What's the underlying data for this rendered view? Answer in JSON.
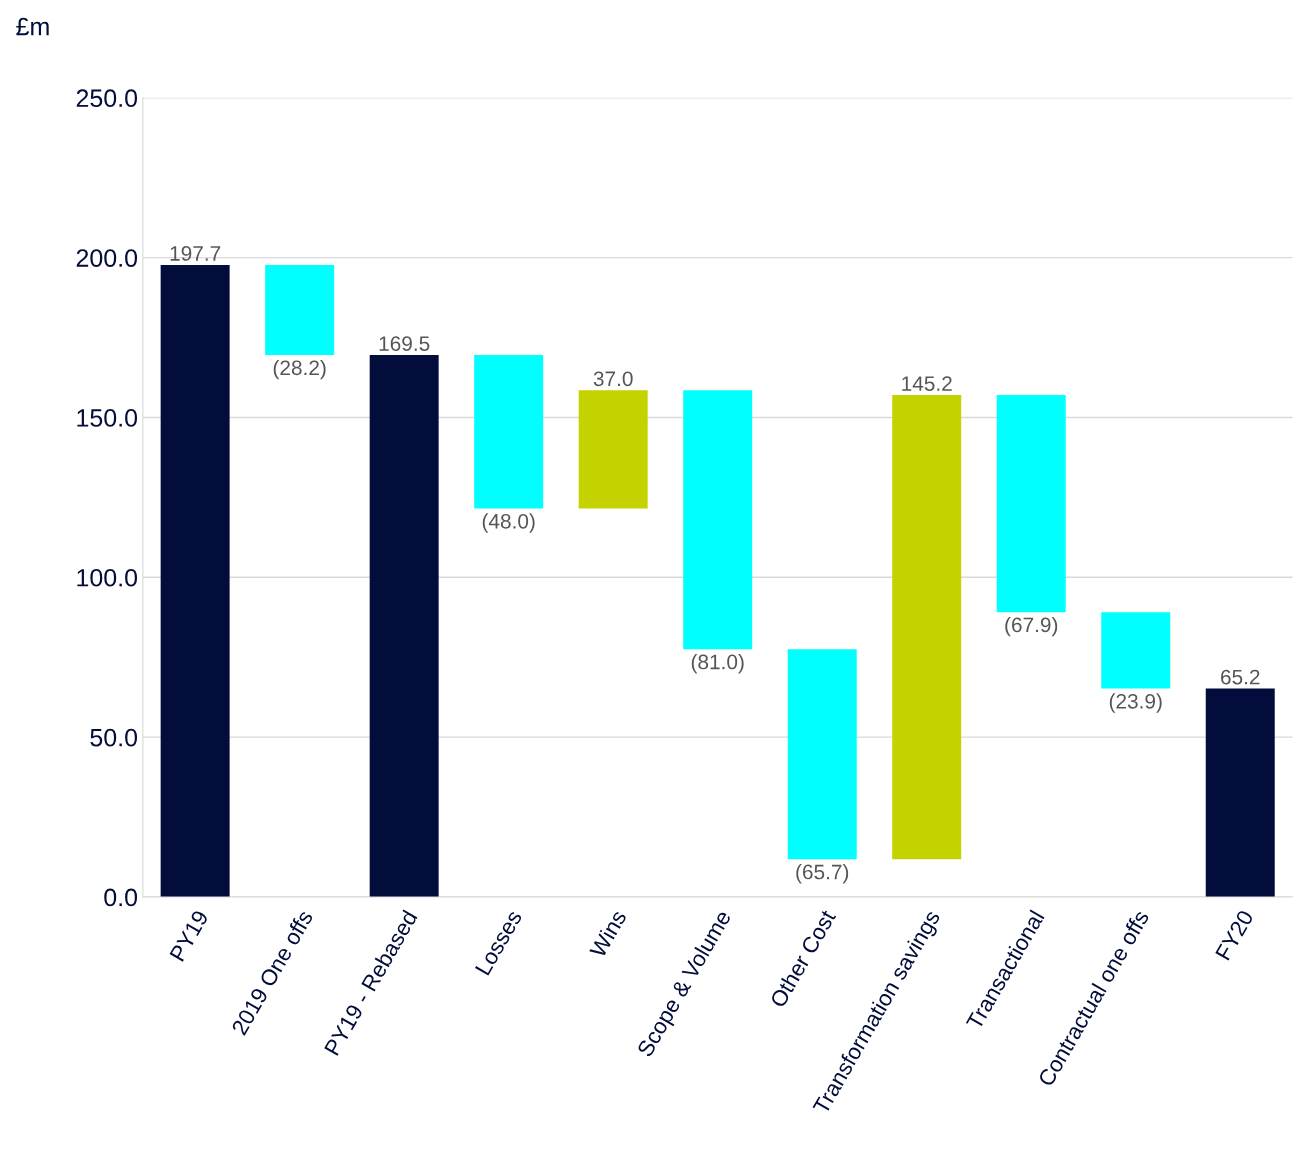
{
  "chart_data": {
    "type": "bar",
    "ylabel": "£m",
    "categories": [
      "PY19",
      "2019 One offs",
      "PY19 - Rebased",
      "Losses",
      "Wins",
      "Scope & Volume",
      "Other Cost",
      "Transformation savings",
      "Transactional",
      "Contractual one offs",
      "FY20"
    ],
    "base": [
      0,
      197.7,
      0,
      169.5,
      121.5,
      158.5,
      77.5,
      11.8,
      157.0,
      89.1,
      0
    ],
    "values": [
      197.7,
      -28.2,
      169.5,
      -48.0,
      37.0,
      -81.0,
      -65.7,
      145.2,
      -67.9,
      -23.9,
      65.2
    ],
    "value_labels": [
      "197.7",
      "(28.2)",
      "169.5",
      "(48.0)",
      "37.0",
      "(81.0)",
      "(65.7)",
      "145.2",
      "(67.9)",
      "(23.9)",
      "65.2"
    ],
    "colors": [
      "#030d3b",
      "#00ffff",
      "#030d3b",
      "#00ffff",
      "#c4d200",
      "#00ffff",
      "#00ffff",
      "#c4d200",
      "#00ffff",
      "#00ffff",
      "#030d3b"
    ],
    "ylim": [
      0,
      250
    ],
    "yticks": [
      {
        "value": 0,
        "label": "0.0"
      },
      {
        "value": 50,
        "label": "50.0"
      },
      {
        "value": 100,
        "label": "100.0"
      },
      {
        "value": 150,
        "label": "150.0"
      },
      {
        "value": 200,
        "label": "200.0"
      },
      {
        "value": 250,
        "label": "250.0"
      }
    ],
    "grid": "y",
    "legend": false
  }
}
